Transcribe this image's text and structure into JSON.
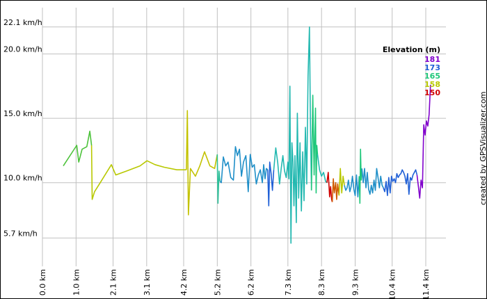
{
  "chart_data": {
    "type": "line",
    "title": "",
    "xlabel": "",
    "ylabel": "",
    "credit": "created by GPSVisualizer.com",
    "grid": true,
    "grid_color": "#c0c0c0",
    "background": "#ffffff",
    "x_unit": "km",
    "xlim": [
      0.0,
      12.0
    ],
    "ylim": [
      3.5,
      23.6
    ],
    "y_ticks": [
      {
        "value": 5.7,
        "label": "5.7 km/h"
      },
      {
        "value": 10.0,
        "label": "10.0 km/h"
      },
      {
        "value": 15.0,
        "label": "15.0 km/h"
      },
      {
        "value": 20.0,
        "label": "20.0 km/h"
      },
      {
        "value": 22.1,
        "label": "22.1 km/h"
      }
    ],
    "x_ticks": [
      {
        "value": 0.0,
        "label": "0.0 km"
      },
      {
        "value": 1.0,
        "label": "1.0 km"
      },
      {
        "value": 2.1,
        "label": "2.1 km"
      },
      {
        "value": 3.1,
        "label": "3.1 km"
      },
      {
        "value": 4.2,
        "label": "4.2 km"
      },
      {
        "value": 5.2,
        "label": "5.2 km"
      },
      {
        "value": 6.2,
        "label": "6.2 km"
      },
      {
        "value": 7.3,
        "label": "7.3 km"
      },
      {
        "value": 8.3,
        "label": "8.3 km"
      },
      {
        "value": 9.3,
        "label": "9.3 km"
      },
      {
        "value": 10.4,
        "label": "10.4 km"
      },
      {
        "value": 11.4,
        "label": "11.4 km"
      }
    ],
    "legend": {
      "title": "Elevation (m)",
      "placement": "top-right",
      "items": [
        {
          "label": "181",
          "color": "#8000cc"
        },
        {
          "label": "173",
          "color": "#1f5fd6"
        },
        {
          "label": "165",
          "color": "#1fc77a"
        },
        {
          "label": "158",
          "color": "#b8c800"
        },
        {
          "label": "150",
          "color": "#d00000"
        }
      ]
    },
    "series": [
      {
        "color": "#4cc23a",
        "x": [
          0.62,
          1.02,
          1.08,
          1.18,
          1.32,
          1.41,
          1.46
        ],
        "y": [
          11.3,
          12.9,
          11.6,
          12.6,
          12.8,
          14.0,
          12.9
        ]
      },
      {
        "color": "#b8c800",
        "x": [
          1.46,
          1.48,
          1.55,
          1.72,
          2.05,
          2.18,
          2.5,
          2.9,
          3.11,
          3.35,
          3.62,
          4.0,
          4.28
        ],
        "y": [
          12.9,
          8.7,
          9.3,
          10.0,
          11.4,
          10.6,
          10.9,
          11.3,
          11.7,
          11.4,
          11.2,
          11.0,
          11.0
        ]
      },
      {
        "color": "#c3c200",
        "x": [
          4.28,
          4.31,
          4.34,
          4.4,
          4.45,
          4.55,
          4.68,
          4.82,
          4.98,
          5.12,
          5.2
        ],
        "y": [
          11.0,
          15.6,
          7.5,
          11.1,
          10.9,
          10.5,
          11.3,
          12.4,
          11.3,
          11.1,
          12.2
        ]
      },
      {
        "color": "#2fbf9a",
        "x": [
          5.2,
          5.22,
          5.25,
          5.28
        ],
        "y": [
          12.2,
          8.4,
          10.9,
          10.1
        ]
      },
      {
        "color": "#1f8fc8",
        "x": [
          5.28,
          5.32,
          5.38,
          5.45,
          5.52,
          5.6,
          5.68,
          5.74,
          5.8,
          5.86,
          5.92,
          5.98,
          6.05,
          6.12,
          6.18,
          6.24,
          6.3,
          6.36,
          6.42,
          6.48,
          6.54,
          6.58,
          6.62,
          6.66,
          6.7
        ],
        "y": [
          10.1,
          10.0,
          12.0,
          11.3,
          11.6,
          10.4,
          10.2,
          12.8,
          12.1,
          12.6,
          10.5,
          11.6,
          12.1,
          9.3,
          12.2,
          11.2,
          11.4,
          9.9,
          10.6,
          11.0,
          10.0,
          11.4,
          10.3,
          11.1,
          11.0
        ]
      },
      {
        "color": "#1f5fd6",
        "x": [
          6.7,
          6.73,
          6.76,
          6.8,
          6.84,
          6.88
        ],
        "y": [
          11.0,
          8.2,
          11.6,
          10.7,
          9.4,
          11.0
        ]
      },
      {
        "color": "#22b8b0",
        "x": [
          6.88,
          6.94,
          7.0,
          7.05,
          7.1,
          7.15,
          7.2,
          7.25,
          7.3,
          7.33,
          7.36,
          7.39,
          7.42,
          7.45,
          7.48,
          7.51,
          7.55,
          7.58,
          7.62,
          7.66,
          7.7,
          7.74,
          7.78,
          7.82,
          7.86,
          7.9,
          7.94,
          7.97,
          8.0
        ],
        "y": [
          11.0,
          12.7,
          11.5,
          9.9,
          11.1,
          12.1,
          10.9,
          10.4,
          11.6,
          10.3,
          17.5,
          5.3,
          13.1,
          11.6,
          8.2,
          12.1,
          6.9,
          15.4,
          8.8,
          13.1,
          7.8,
          12.4,
          8.6,
          14.3,
          9.9,
          18.3,
          22.1,
          14.6,
          9.4
        ]
      },
      {
        "color": "#1fc77a",
        "x": [
          8.0,
          8.04,
          8.08,
          8.1,
          8.12,
          8.14,
          8.16,
          8.18
        ],
        "y": [
          9.4,
          16.8,
          10.6,
          13.6,
          15.8,
          9.2,
          12.9,
          12.2
        ]
      },
      {
        "color": "#22b8b0",
        "x": [
          8.18,
          8.24,
          8.3,
          8.36,
          8.42,
          8.46
        ],
        "y": [
          12.2,
          11.0,
          10.5,
          10.8,
          10.1,
          10.0
        ]
      },
      {
        "color": "#d00000",
        "x": [
          8.46,
          8.5,
          8.54,
          8.57,
          8.6,
          8.62
        ],
        "y": [
          10.0,
          10.8,
          8.9,
          9.7,
          8.7,
          8.5
        ]
      },
      {
        "color": "#d05a00",
        "x": [
          8.62,
          8.65,
          8.68,
          8.72,
          8.75,
          8.78,
          8.82
        ],
        "y": [
          8.5,
          10.3,
          9.2,
          10.0,
          8.7,
          9.9,
          9.0
        ]
      },
      {
        "color": "#b8c800",
        "x": [
          8.82,
          8.86,
          8.9,
          8.94,
          8.98
        ],
        "y": [
          9.0,
          11.1,
          9.2,
          10.5,
          9.8
        ]
      },
      {
        "color": "#1f8fc8",
        "x": [
          8.98,
          9.02,
          9.06,
          9.1,
          9.14,
          9.18,
          9.22,
          9.26,
          9.3,
          9.34,
          9.38,
          9.42
        ],
        "y": [
          9.8,
          9.4,
          9.6,
          10.2,
          9.3,
          9.7,
          10.5,
          9.5,
          9.0,
          10.6,
          8.9,
          10.5
        ]
      },
      {
        "color": "#1fc77a",
        "x": [
          9.42,
          9.44,
          9.46,
          9.48,
          9.5
        ],
        "y": [
          10.5,
          8.4,
          12.6,
          10.2,
          11.1
        ]
      },
      {
        "color": "#1f8fc8",
        "x": [
          9.5,
          9.54,
          9.58,
          9.62,
          9.66,
          9.7,
          9.74,
          9.78,
          9.82,
          9.86,
          9.9,
          9.94,
          9.98,
          10.02,
          10.06,
          10.1,
          10.14
        ],
        "y": [
          11.1,
          10.0,
          11.1,
          9.6,
          10.8,
          9.5,
          9.1,
          9.8,
          9.2,
          10.2,
          9.4,
          11.1,
          10.4,
          9.6,
          10.5,
          9.8,
          9.6
        ]
      },
      {
        "color": "#1f5fd6",
        "x": [
          10.14,
          10.18,
          10.22,
          10.26,
          10.3,
          10.34,
          10.38,
          10.42,
          10.46,
          10.5,
          10.54,
          10.58,
          10.62,
          10.66,
          10.7,
          10.74,
          10.78,
          10.82,
          10.86,
          10.9,
          10.94,
          10.98,
          11.02,
          11.06,
          11.1,
          11.14
        ],
        "y": [
          9.6,
          9.3,
          10.1,
          9.0,
          10.4,
          9.2,
          10.5,
          10.1,
          10.3,
          10.0,
          10.7,
          10.4,
          10.6,
          10.7,
          11.0,
          10.8,
          10.5,
          9.9,
          10.7,
          9.1,
          10.4,
          10.2,
          10.6,
          10.8,
          11.0,
          10.6
        ]
      },
      {
        "color": "#8000cc",
        "x": [
          11.14,
          11.18,
          11.22,
          11.26,
          11.3,
          11.34,
          11.38,
          11.42,
          11.46,
          11.5,
          11.54
        ],
        "y": [
          10.6,
          9.7,
          8.8,
          10.2,
          9.6,
          14.5,
          13.7,
          14.8,
          14.4,
          15.3,
          17.6
        ]
      }
    ]
  }
}
